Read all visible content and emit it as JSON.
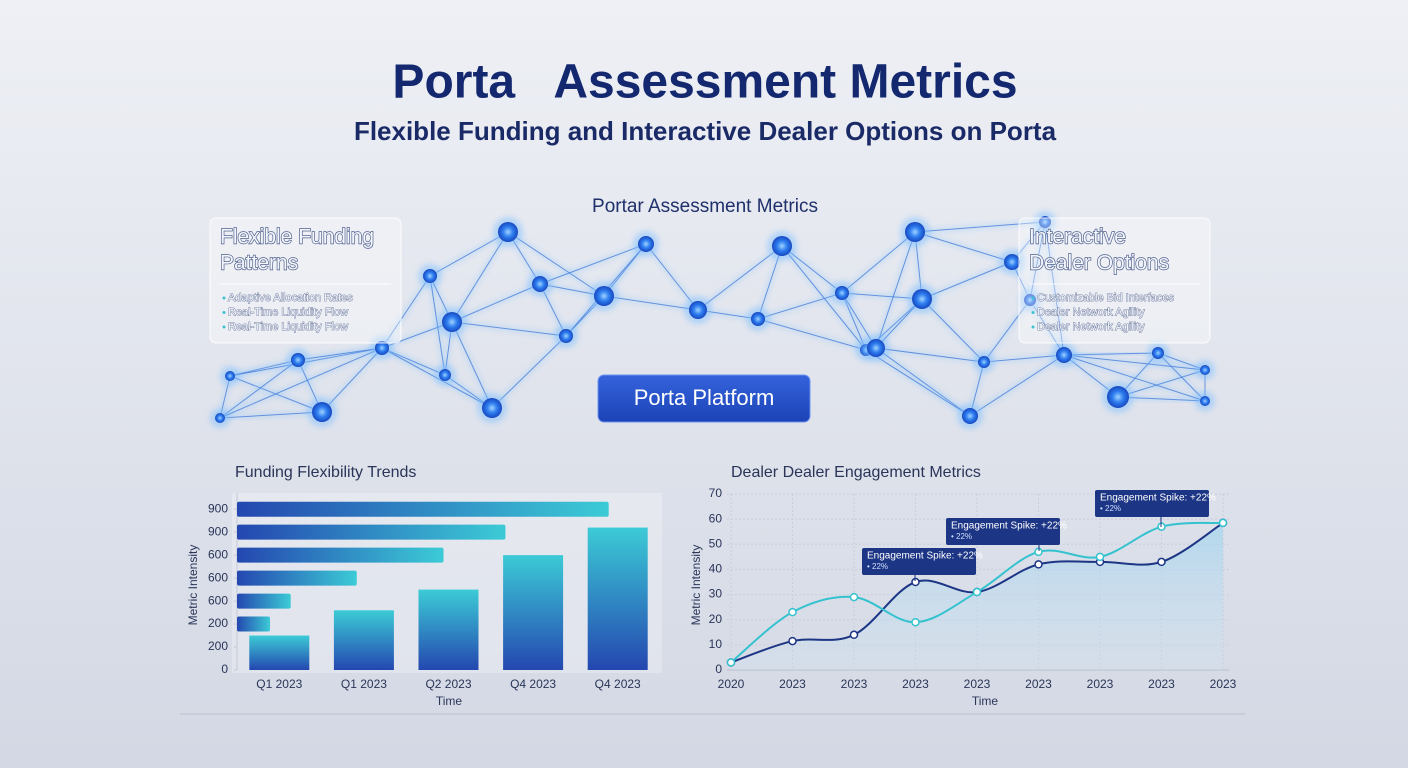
{
  "header": {
    "title": "Porta   Assessment Metrics",
    "subtitle": "Flexible Funding and Interactive Dealer Options on Porta"
  },
  "network": {
    "title": "Portar Assessment Metrics",
    "button": "Porta Platform"
  },
  "cards": [
    {
      "title": [
        "Flexible Funding",
        "Patterns"
      ],
      "items": [
        "Adaptive Allocation Rates",
        "Real-Time Liquidity Flow",
        "Real-Time Liquidity Flow"
      ]
    },
    {
      "title": [
        "Interactive",
        "Dealer Options"
      ],
      "items": [
        "Customizable Bid Interfaces",
        "Dealer Network Agility",
        "Dealer Network Agility"
      ]
    }
  ],
  "chart_data": [
    {
      "type": "bar",
      "title": "Funding Flexibility Trends",
      "ylabel": "Metric Intensity",
      "xlabel": "Time",
      "categories": [
        "Q1 2023",
        "Q1 2023",
        "Q2 2023",
        "Q4 2023",
        "Q4 2023"
      ],
      "values": [
        1.5,
        2.6,
        3.5,
        5.0,
        6.2
      ],
      "colors": [
        "#37c4d4",
        "#2447b0"
      ],
      "ylim": [
        0,
        7.4
      ],
      "yticks": [
        0,
        {
          "value": 1,
          "label": "200"
        },
        {
          "value": 2,
          "label": "200"
        },
        {
          "value": 3,
          "label": "600"
        },
        {
          "value": 4,
          "label": "600"
        },
        {
          "value": 5,
          "label": "600"
        },
        {
          "value": 6,
          "label": "900"
        },
        {
          "value": 7,
          "label": "900"
        }
      ],
      "horizontal_bars": {
        "values": [
          90,
          65,
          50,
          29,
          13,
          8
        ],
        "xlim": [
          0,
          100
        ]
      }
    },
    {
      "type": "line",
      "title": "Dealer Dealer Engagement Metrics",
      "ylabel": "Metric Intensity",
      "xlabel": "Time",
      "categories": [
        "2020",
        "2023",
        "2023",
        "2023",
        "2023",
        "2023",
        "2023",
        "2023",
        "2023"
      ],
      "series": [
        {
          "name": "Navy",
          "color": "#1c3585",
          "values": [
            3,
            11.5,
            14,
            35,
            31,
            42,
            43,
            43,
            58.5
          ]
        },
        {
          "name": "Teal",
          "color": "#35c2cf",
          "values": [
            3,
            23,
            29,
            19,
            31,
            47,
            45,
            57,
            58.5
          ]
        }
      ],
      "ylim": [
        0,
        70
      ],
      "yticks": [
        0,
        10,
        20,
        30,
        40,
        50,
        60,
        70
      ],
      "grid": true,
      "annotations": [
        {
          "text": "Engagement Spike: +22%",
          "note": "• 22%"
        },
        {
          "text": "Engagement Spike: +22%",
          "note": "• 22%"
        },
        {
          "text": "Engagement Spike: +22%",
          "note": "• 22%"
        }
      ]
    }
  ]
}
